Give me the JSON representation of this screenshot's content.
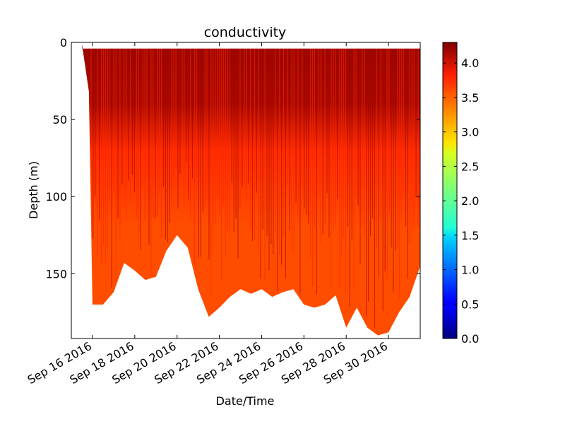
{
  "chart_data": {
    "type": "scatter",
    "title": "conductivity",
    "xlabel": "Date/Time",
    "ylabel": "Depth (m)",
    "x_tick_labels": [
      "Sep 16 2016",
      "Sep 18 2016",
      "Sep 20 2016",
      "Sep 22 2016",
      "Sep 24 2016",
      "Sep 26 2016",
      "Sep 28 2016",
      "Sep 30 2016"
    ],
    "x_ticks": [
      "2016-09-16",
      "2016-09-18",
      "2016-09-20",
      "2016-09-22",
      "2016-09-24",
      "2016-09-26",
      "2016-09-28",
      "2016-09-30"
    ],
    "xlim": [
      "2016-09-15",
      "2016-10-01 12:00"
    ],
    "y_ticks": [
      0,
      50,
      100,
      150
    ],
    "ylim": [
      192,
      0
    ],
    "y_inverted": true,
    "colorbar": {
      "colormap": "jet",
      "range": [
        0.0,
        4.3
      ],
      "tick_values": [
        0.0,
        0.5,
        1.0,
        1.5,
        2.0,
        2.5,
        3.0,
        3.5,
        4.0
      ],
      "tick_labels": [
        "0.0",
        "0.5",
        "1.0",
        "1.5",
        "2.0",
        "2.5",
        "3.0",
        "3.5",
        "4.0"
      ]
    },
    "surface_depth": 4,
    "max_depth_profile": [
      {
        "x": "2016-09-15 12:00",
        "depth": 1
      },
      {
        "x": "2016-09-15 20:00",
        "depth": 32
      },
      {
        "x": "2016-09-16 00:00",
        "depth": 170
      },
      {
        "x": "2016-09-16 12:00",
        "depth": 170
      },
      {
        "x": "2016-09-17 00:00",
        "depth": 162
      },
      {
        "x": "2016-09-17 12:00",
        "depth": 143
      },
      {
        "x": "2016-09-18 00:00",
        "depth": 148
      },
      {
        "x": "2016-09-18 12:00",
        "depth": 154
      },
      {
        "x": "2016-09-19 00:00",
        "depth": 152
      },
      {
        "x": "2016-09-19 12:00",
        "depth": 135
      },
      {
        "x": "2016-09-20 00:00",
        "depth": 125
      },
      {
        "x": "2016-09-20 12:00",
        "depth": 133
      },
      {
        "x": "2016-09-21 00:00",
        "depth": 160
      },
      {
        "x": "2016-09-21 12:00",
        "depth": 178
      },
      {
        "x": "2016-09-22 00:00",
        "depth": 172
      },
      {
        "x": "2016-09-22 12:00",
        "depth": 165
      },
      {
        "x": "2016-09-23 00:00",
        "depth": 160
      },
      {
        "x": "2016-09-23 12:00",
        "depth": 163
      },
      {
        "x": "2016-09-24 00:00",
        "depth": 160
      },
      {
        "x": "2016-09-24 12:00",
        "depth": 165
      },
      {
        "x": "2016-09-25 00:00",
        "depth": 162
      },
      {
        "x": "2016-09-25 12:00",
        "depth": 160
      },
      {
        "x": "2016-09-26 00:00",
        "depth": 170
      },
      {
        "x": "2016-09-26 12:00",
        "depth": 172
      },
      {
        "x": "2016-09-27 00:00",
        "depth": 170
      },
      {
        "x": "2016-09-27 12:00",
        "depth": 164
      },
      {
        "x": "2016-09-28 00:00",
        "depth": 185
      },
      {
        "x": "2016-09-28 12:00",
        "depth": 172
      },
      {
        "x": "2016-09-29 00:00",
        "depth": 185
      },
      {
        "x": "2016-09-29 12:00",
        "depth": 190
      },
      {
        "x": "2016-09-30 00:00",
        "depth": 188
      },
      {
        "x": "2016-09-30 12:00",
        "depth": 175
      },
      {
        "x": "2016-10-01 00:00",
        "depth": 165
      },
      {
        "x": "2016-10-01 12:00",
        "depth": 145
      }
    ],
    "conductivity_by_depth": [
      {
        "depth": 0,
        "value": 4.2
      },
      {
        "depth": 40,
        "value": 4.15
      },
      {
        "depth": 70,
        "value": 3.75
      },
      {
        "depth": 120,
        "value": 3.6
      },
      {
        "depth": 190,
        "value": 3.6
      }
    ]
  }
}
